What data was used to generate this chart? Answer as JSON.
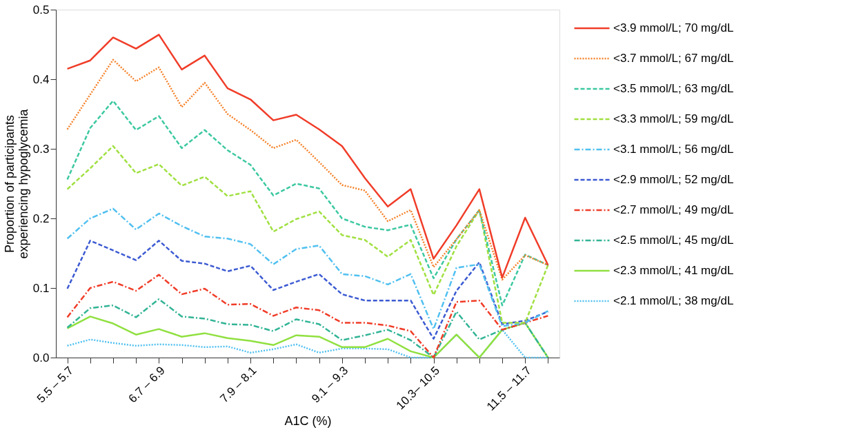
{
  "chart_data": {
    "type": "line",
    "xlabel": "A1C (%)",
    "ylabel": "Proportion of participants\nexperiencing hypoglycemia",
    "categories": [
      "5.5 – 5.7",
      null,
      null,
      null,
      "6.7 – 6.9",
      null,
      null,
      null,
      "7.9 – 8.1",
      null,
      null,
      null,
      "9.1 – 9.3",
      null,
      null,
      null,
      "10.3– 10.5",
      null,
      null,
      null,
      "11.5 – 11.7",
      null
    ],
    "ylim": [
      0,
      0.5
    ],
    "yticks": [
      {
        "value": 0,
        "label": "0.0"
      },
      0.1,
      0.2,
      0.3,
      0.4,
      0.5
    ],
    "grid": false,
    "legend": "right",
    "series": [
      {
        "name": "<3.9 mmol/L; 70 mg/dL",
        "color": "#f03c28",
        "line_style": "solid",
        "values": [
          0.415,
          0.427,
          0.46,
          0.444,
          0.464,
          0.414,
          0.434,
          0.387,
          0.371,
          0.341,
          0.349,
          0.328,
          0.304,
          0.258,
          0.217,
          0.242,
          0.142,
          0.19,
          0.242,
          0.115,
          0.201,
          0.133
        ]
      },
      {
        "name": "<3.7 mmol/L; 67 mg/dL",
        "color": "#f5822a",
        "line_style": "dotted",
        "values": [
          0.328,
          0.378,
          0.428,
          0.397,
          0.417,
          0.36,
          0.395,
          0.35,
          0.327,
          0.301,
          0.313,
          0.281,
          0.248,
          0.24,
          0.196,
          0.212,
          0.13,
          0.17,
          0.212,
          0.112,
          0.147,
          0.133
        ]
      },
      {
        "name": "<3.5 mmol/L; 63 mg/dL",
        "color": "#3cc8a0",
        "line_style": "dashed",
        "values": [
          0.256,
          0.33,
          0.369,
          0.327,
          0.347,
          0.301,
          0.327,
          0.298,
          0.277,
          0.233,
          0.25,
          0.243,
          0.2,
          0.188,
          0.183,
          0.191,
          0.114,
          0.17,
          0.212,
          0.075,
          0.148,
          0.133
        ]
      },
      {
        "name": "<3.3 mmol/L; 59 mg/dL",
        "color": "#a0e040",
        "line_style": "dashed",
        "values": [
          0.242,
          0.272,
          0.304,
          0.265,
          0.278,
          0.247,
          0.26,
          0.232,
          0.239,
          0.181,
          0.199,
          0.21,
          0.176,
          0.169,
          0.145,
          0.169,
          0.09,
          0.16,
          0.212,
          0.05,
          0.05,
          0.133
        ]
      },
      {
        "name": "<3.1 mmol/L; 56 mg/dL",
        "color": "#50c0f0",
        "line_style": "dashdot",
        "values": [
          0.171,
          0.2,
          0.214,
          0.184,
          0.207,
          0.189,
          0.174,
          0.171,
          0.163,
          0.134,
          0.156,
          0.161,
          0.12,
          0.117,
          0.105,
          0.12,
          0.041,
          0.129,
          0.134,
          0.045,
          0.05,
          0.067
        ]
      },
      {
        "name": "<2.9 mmol/L; 52 mg/dL",
        "color": "#3c5ad2",
        "line_style": "dashed",
        "values": [
          0.099,
          0.168,
          0.154,
          0.14,
          0.168,
          0.139,
          0.135,
          0.124,
          0.132,
          0.097,
          0.109,
          0.12,
          0.091,
          0.082,
          0.082,
          0.082,
          0.027,
          0.096,
          0.137,
          0.048,
          0.053,
          0.066
        ]
      },
      {
        "name": "<2.7 mmol/L; 49 mg/dL",
        "color": "#f03c28",
        "line_style": "dashdot",
        "values": [
          0.058,
          0.1,
          0.109,
          0.096,
          0.119,
          0.091,
          0.099,
          0.076,
          0.077,
          0.06,
          0.072,
          0.068,
          0.05,
          0.05,
          0.046,
          0.038,
          0.0,
          0.08,
          0.082,
          0.04,
          0.05,
          0.06
        ]
      },
      {
        "name": "<2.5 mmol/L; 45 mg/dL",
        "color": "#32b496",
        "line_style": "dashdot",
        "values": [
          0.043,
          0.071,
          0.075,
          0.058,
          0.084,
          0.059,
          0.056,
          0.048,
          0.047,
          0.038,
          0.055,
          0.048,
          0.025,
          0.032,
          0.04,
          0.025,
          0.0,
          0.066,
          0.026,
          0.04,
          0.05,
          0.0
        ]
      },
      {
        "name": "<2.3 mmol/L; 41 mg/dL",
        "color": "#90e040",
        "line_style": "solid",
        "values": [
          0.042,
          0.059,
          0.049,
          0.033,
          0.041,
          0.03,
          0.035,
          0.028,
          0.024,
          0.018,
          0.032,
          0.03,
          0.015,
          0.015,
          0.027,
          0.009,
          0.0,
          0.033,
          0.0,
          0.04,
          0.05,
          0.0
        ]
      },
      {
        "name": "<2.1 mmol/L; 38 mg/dL",
        "color": "#50c0f0",
        "line_style": "dotted",
        "values": [
          0.017,
          0.026,
          0.021,
          0.017,
          0.019,
          0.018,
          0.015,
          0.016,
          0.007,
          0.012,
          0.019,
          0.007,
          0.013,
          0.013,
          0.012,
          0.0,
          0.0,
          0.033,
          0.0,
          0.04,
          0.0,
          0.0
        ]
      }
    ]
  }
}
